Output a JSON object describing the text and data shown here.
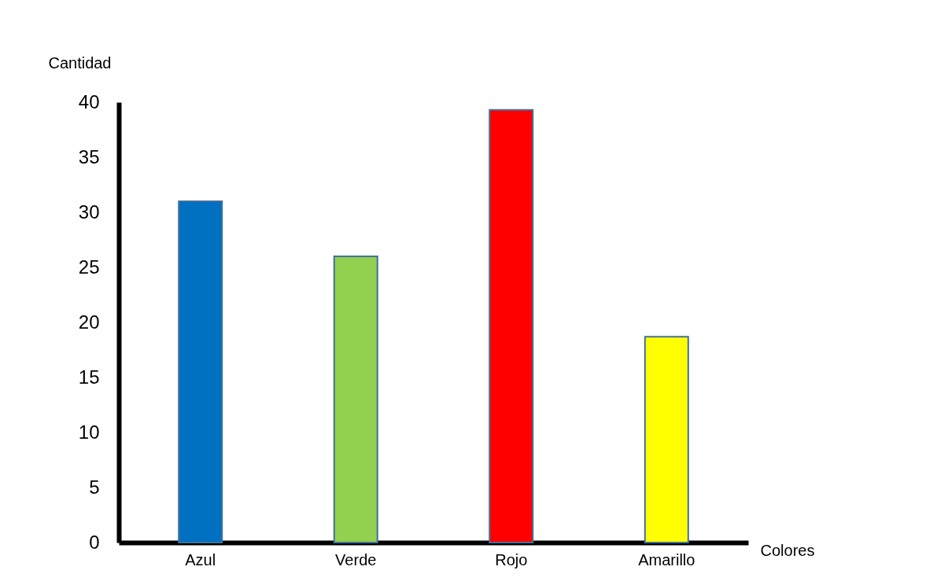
{
  "chart_data": {
    "type": "bar",
    "xlabel": "Colores",
    "ylabel": "Cantidad",
    "categories": [
      "Azul",
      "Verde",
      "Rojo",
      "Amarillo"
    ],
    "values": [
      31,
      26,
      39.3,
      18.7
    ],
    "colors": [
      "#0070c0",
      "#92d050",
      "#ff0000",
      "#ffff00"
    ],
    "ylim": [
      0,
      40
    ],
    "yticks": [
      0,
      5,
      10,
      15,
      20,
      25,
      30,
      35,
      40
    ],
    "grid": false,
    "legend": false
  }
}
